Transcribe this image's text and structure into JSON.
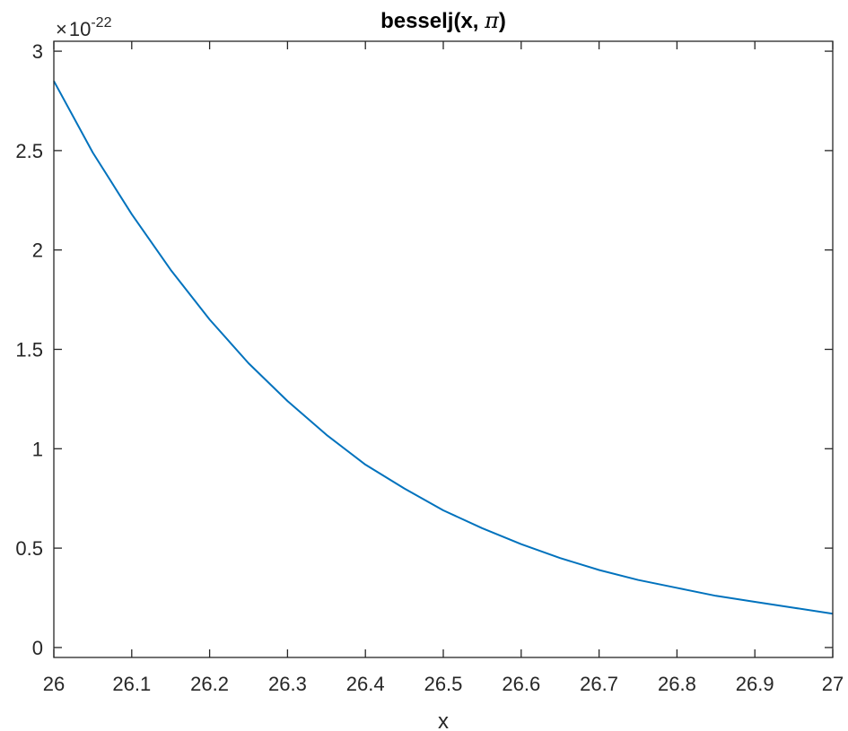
{
  "chart_data": {
    "type": "line",
    "title": "besselj(x, π)",
    "title_prefix": "besselj(x, ",
    "title_symbol": "π",
    "title_suffix": ")",
    "xlabel": "x",
    "ylabel": "",
    "y_exponent": {
      "times": "×",
      "base": "10",
      "power": "-22"
    },
    "xlim": [
      26,
      27
    ],
    "ylim": [
      -0.05,
      3.05
    ],
    "x_ticks": [
      26,
      26.1,
      26.2,
      26.3,
      26.4,
      26.5,
      26.6,
      26.7,
      26.8,
      26.9,
      27
    ],
    "x_tick_labels": [
      "26",
      "26.1",
      "26.2",
      "26.3",
      "26.4",
      "26.5",
      "26.6",
      "26.7",
      "26.8",
      "26.9",
      "27"
    ],
    "y_ticks": [
      0,
      0.5,
      1,
      1.5,
      2,
      2.5,
      3
    ],
    "y_tick_labels": [
      "0",
      "0.5",
      "1",
      "1.5",
      "2",
      "2.5",
      "3"
    ],
    "grid": false,
    "series": [
      {
        "color": "#0072BD",
        "x": [
          26,
          26.05,
          26.1,
          26.15,
          26.2,
          26.25,
          26.3,
          26.35,
          26.4,
          26.45,
          26.5,
          26.55,
          26.6,
          26.65,
          26.7,
          26.75,
          26.8,
          26.85,
          26.9,
          26.95,
          27
        ],
        "y": [
          2.85,
          2.49,
          2.18,
          1.9,
          1.65,
          1.43,
          1.24,
          1.07,
          0.92,
          0.8,
          0.69,
          0.6,
          0.52,
          0.45,
          0.39,
          0.34,
          0.3,
          0.26,
          0.23,
          0.2,
          0.17
        ]
      }
    ]
  }
}
